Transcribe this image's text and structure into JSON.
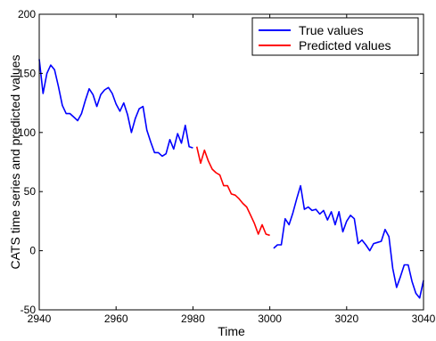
{
  "chart_data": {
    "type": "line",
    "title": "",
    "xlabel": "Time",
    "ylabel": "CATS time series and predicted values",
    "xlim": [
      2940,
      3040
    ],
    "ylim": [
      -50,
      200
    ],
    "xticks": [
      2940,
      2960,
      2980,
      3000,
      3020,
      3040
    ],
    "yticks": [
      -50,
      0,
      50,
      100,
      150,
      200
    ],
    "grid": false,
    "legend_position": "top-right",
    "series": [
      {
        "name": "True values",
        "color": "#0000ff",
        "segments": [
          {
            "x": [
              2940,
              2941,
              2942,
              2943,
              2944,
              2945,
              2946,
              2947,
              2948,
              2949,
              2950,
              2951,
              2952,
              2953,
              2954,
              2955,
              2956,
              2957,
              2958,
              2959,
              2960,
              2961,
              2962,
              2963,
              2964,
              2965,
              2966,
              2967,
              2968,
              2969,
              2970,
              2971,
              2972,
              2973,
              2974,
              2975,
              2976,
              2977,
              2978,
              2979,
              2980
            ],
            "y": [
              162,
              133,
              150,
              157,
              153,
              139,
              123,
              116,
              116,
              113,
              110,
              116,
              127,
              137,
              132,
              122,
              132,
              136,
              138,
              133,
              124,
              118,
              125,
              115,
              100,
              112,
              120,
              122,
              102,
              92,
              83,
              83,
              80,
              82,
              94,
              86,
              99,
              91,
              106,
              88,
              87
            ]
          },
          {
            "x": [
              3001,
              3002,
              3003,
              3004,
              3005,
              3006,
              3007,
              3008,
              3009,
              3010,
              3011,
              3012,
              3013,
              3014,
              3015,
              3016,
              3017,
              3018,
              3019,
              3020,
              3021,
              3022,
              3023,
              3024,
              3025,
              3026,
              3027,
              3028,
              3029,
              3030,
              3031,
              3032,
              3033,
              3034,
              3035,
              3036,
              3037,
              3038,
              3039,
              3040
            ],
            "y": [
              2,
              5,
              5,
              27,
              22,
              32,
              44,
              55,
              35,
              37,
              34,
              35,
              31,
              34,
              26,
              33,
              22,
              33,
              16,
              25,
              30,
              27,
              6,
              9,
              5,
              0,
              6,
              7,
              8,
              18,
              12,
              -15,
              -31,
              -22,
              -12,
              -12,
              -26,
              -36,
              -40,
              -25
            ]
          }
        ]
      },
      {
        "name": "Predicted values",
        "color": "#ff0000",
        "segments": [
          {
            "x": [
              2981,
              2982,
              2983,
              2984,
              2985,
              2986,
              2987,
              2988,
              2989,
              2990,
              2991,
              2992,
              2993,
              2994,
              2995,
              2996,
              2997,
              2998,
              2999,
              3000
            ],
            "y": [
              88,
              74,
              85,
              76,
              69,
              66,
              64,
              55,
              55,
              48,
              47,
              44,
              40,
              37,
              30,
              23,
              14,
              22,
              14,
              13
            ]
          }
        ]
      }
    ]
  }
}
